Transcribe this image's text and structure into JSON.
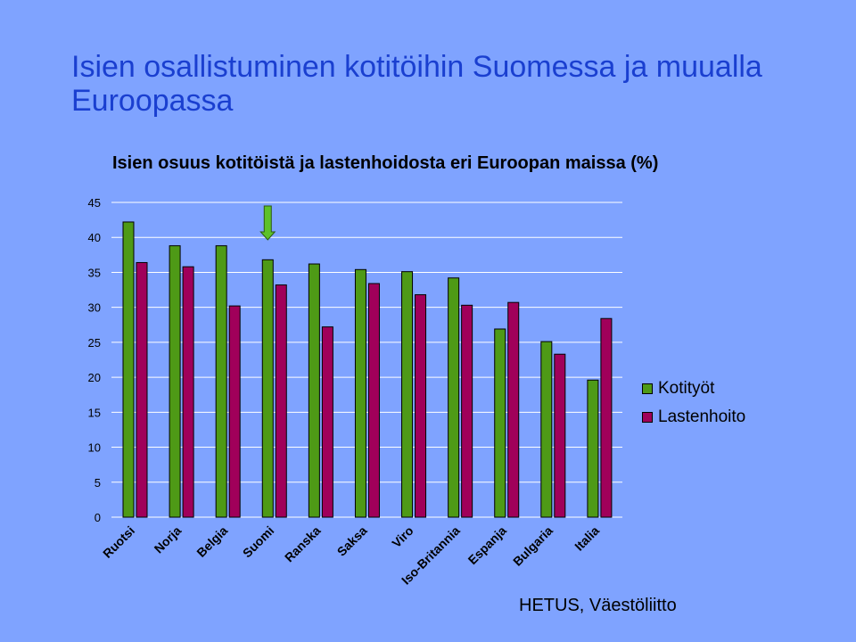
{
  "slide": {
    "title": "Isien osallistuminen kotitöihin Suomessa ja muualla Euroopassa",
    "source": "HETUS, Väestöliitto"
  },
  "colors": {
    "background": "#7FA3FF",
    "title": "#1A3FD0",
    "kotityot": "#4E9A16",
    "lastenhoito": "#A0005A",
    "marker": "#5DC12A"
  },
  "chart_data": {
    "type": "bar",
    "title": "Isien osuus kotitöistä ja lastenhoidosta eri Euroopan maissa (%)",
    "xlabel": "",
    "ylabel": "",
    "ylim": [
      0,
      45
    ],
    "yticks": [
      0,
      5,
      10,
      15,
      20,
      25,
      30,
      35,
      40,
      45
    ],
    "grid": true,
    "legend_position": "right",
    "categories": [
      "Ruotsi",
      "Norja",
      "Belgia",
      "Suomi",
      "Ranska",
      "Saksa",
      "Viro",
      "Iso-Britannia",
      "Espanja",
      "Bulgaria",
      "Italia"
    ],
    "series": [
      {
        "name": "Kotityöt",
        "values": [
          42.2,
          38.8,
          38.8,
          36.8,
          36.2,
          35.4,
          35.1,
          34.2,
          26.9,
          25.1,
          19.6
        ]
      },
      {
        "name": "Lastenhoito",
        "values": [
          36.4,
          35.8,
          30.2,
          33.2,
          27.2,
          33.4,
          31.8,
          30.3,
          30.7,
          23.3,
          28.4
        ]
      }
    ],
    "highlight_category": "Suomi"
  }
}
